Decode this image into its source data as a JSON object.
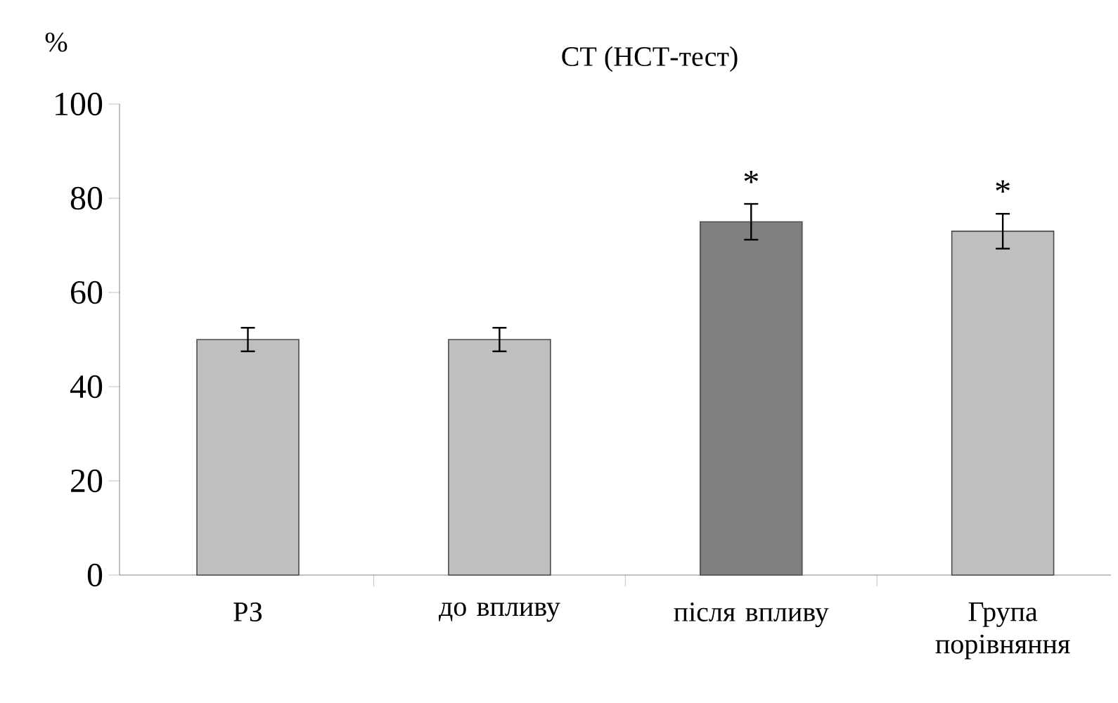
{
  "chart_data": {
    "type": "bar",
    "title": "СТ (НСТ-тест)",
    "ylabel": "%",
    "categories": [
      "РЗ",
      "до впливу",
      "після впливу",
      "Група порівняння"
    ],
    "values": [
      50,
      50,
      75,
      73
    ],
    "errors": [
      2.5,
      2.5,
      3.8,
      3.7
    ],
    "colors": [
      "#bfbfbf",
      "#bfbfbf",
      "#808080",
      "#bfbfbf"
    ],
    "ylim": [
      0,
      100
    ],
    "yticks": [
      0,
      20,
      40,
      60,
      80,
      100
    ],
    "annotations": [
      {
        "text": "*",
        "x": "після впливу",
        "y": 75
      },
      {
        "text": "*",
        "x": "Група порівняння",
        "y": 73
      }
    ]
  }
}
